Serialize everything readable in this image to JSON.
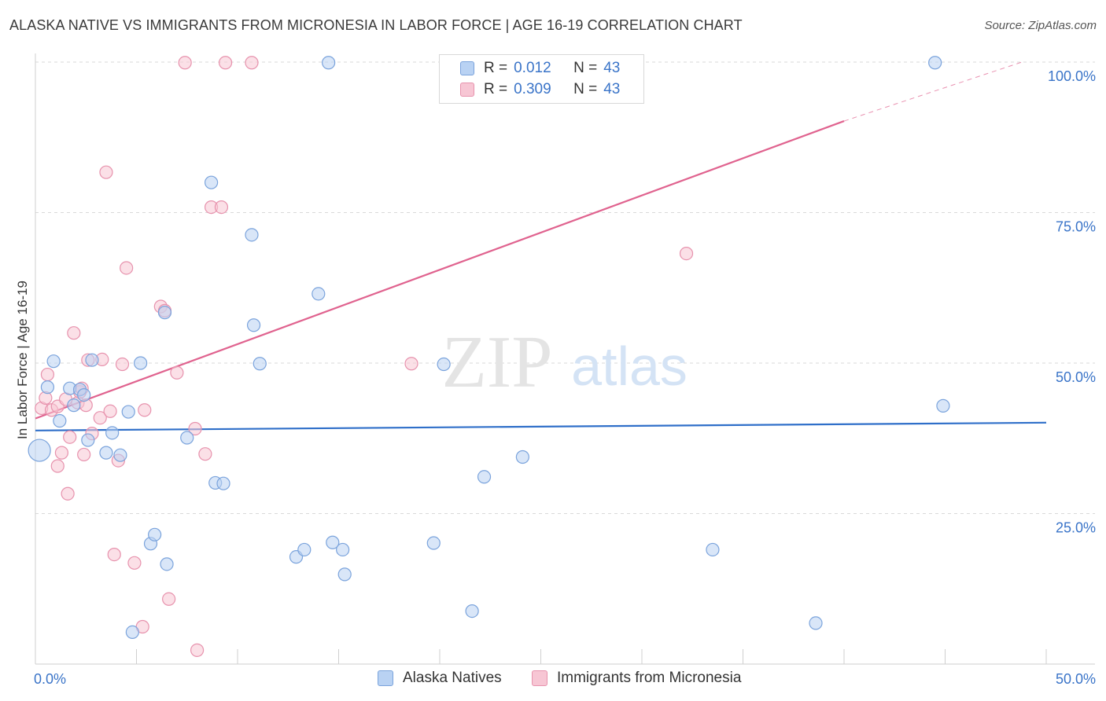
{
  "header": {
    "title": "ALASKA NATIVE VS IMMIGRANTS FROM MICRONESIA IN LABOR FORCE | AGE 16-19 CORRELATION CHART",
    "source": "Source: ZipAtlas.com"
  },
  "watermark": {
    "zip": "ZIP",
    "atlas": "atlas"
  },
  "legend": {
    "rows": [
      {
        "r_label": "R =",
        "r_value": "0.012",
        "n_label": "N =",
        "n_value": "43"
      },
      {
        "r_label": "R =",
        "r_value": "0.309",
        "n_label": "N =",
        "n_value": "43"
      }
    ]
  },
  "colors": {
    "blue_fill": "#b9d2f3",
    "blue_stroke": "#7aa3dc",
    "blue_line": "#2f6fc9",
    "pink_fill": "#f7c6d4",
    "pink_stroke": "#e792ad",
    "pink_line": "#e0638f",
    "grid": "#d9d9d9",
    "axis_label": "#3a74c8"
  },
  "chart_data": {
    "type": "scatter",
    "title": "ALASKA NATIVE VS IMMIGRANTS FROM MICRONESIA IN LABOR FORCE | AGE 16-19 CORRELATION CHART",
    "xlabel": "",
    "ylabel": "In Labor Force | Age 16-19",
    "xlim": [
      0,
      50
    ],
    "ylim": [
      0,
      100
    ],
    "x_ticks": [
      "0.0%",
      "50.0%"
    ],
    "y_ticks": [
      "25.0%",
      "50.0%",
      "75.0%",
      "100.0%"
    ],
    "legend_position": "bottom-center",
    "series": [
      {
        "name": "Alaska Natives",
        "r": 0.012,
        "n": 43,
        "trend": {
          "x": [
            0,
            50
          ],
          "y": [
            38.8,
            40.1
          ]
        },
        "points": [
          [
            0.2,
            35.5
          ],
          [
            0.6,
            46
          ],
          [
            0.9,
            50.3
          ],
          [
            1.2,
            40.4
          ],
          [
            1.7,
            45.8
          ],
          [
            1.9,
            43
          ],
          [
            2.2,
            45.6
          ],
          [
            2.4,
            44.7
          ],
          [
            2.6,
            37.2
          ],
          [
            2.8,
            50.5
          ],
          [
            3.5,
            35.1
          ],
          [
            3.8,
            38.4
          ],
          [
            4.2,
            34.7
          ],
          [
            4.6,
            41.9
          ],
          [
            5.2,
            50
          ],
          [
            4.8,
            5.3
          ],
          [
            5.7,
            20
          ],
          [
            5.9,
            21.5
          ],
          [
            6.4,
            58.4
          ],
          [
            6.5,
            16.6
          ],
          [
            7.5,
            37.6
          ],
          [
            8.7,
            80
          ],
          [
            8.9,
            30.1
          ],
          [
            9.3,
            30
          ],
          [
            10.7,
            71.3
          ],
          [
            10.8,
            56.3
          ],
          [
            11.1,
            49.9
          ],
          [
            12.9,
            17.8
          ],
          [
            13.3,
            19
          ],
          [
            14,
            61.5
          ],
          [
            14.7,
            20.2
          ],
          [
            14.5,
            99.9
          ],
          [
            15.2,
            19
          ],
          [
            15.3,
            14.9
          ],
          [
            19.7,
            20.1
          ],
          [
            20.2,
            49.8
          ],
          [
            21.6,
            8.8
          ],
          [
            22.2,
            31.1
          ],
          [
            24.1,
            34.4
          ],
          [
            33.5,
            19
          ],
          [
            38.6,
            6.8
          ],
          [
            44.5,
            99.9
          ],
          [
            44.9,
            42.9
          ]
        ]
      },
      {
        "name": "Immigrants from Micronesia",
        "r": 0.309,
        "n": 43,
        "trend": {
          "x": [
            0,
            40
          ],
          "y": [
            40.8,
            90.2
          ]
        },
        "trend_ext": {
          "x": [
            40,
            48.8
          ],
          "y": [
            90.2,
            100
          ]
        },
        "points": [
          [
            0.3,
            42.5
          ],
          [
            0.5,
            44.2
          ],
          [
            0.6,
            48.1
          ],
          [
            0.8,
            42.2
          ],
          [
            1.1,
            42.8
          ],
          [
            1.1,
            32.9
          ],
          [
            1.3,
            35.1
          ],
          [
            1.5,
            44
          ],
          [
            1.6,
            28.3
          ],
          [
            1.7,
            37.7
          ],
          [
            1.9,
            55
          ],
          [
            2.1,
            43.4
          ],
          [
            2.2,
            45.2
          ],
          [
            2.3,
            45.8
          ],
          [
            2.4,
            34.8
          ],
          [
            2.5,
            43
          ],
          [
            2.6,
            50.5
          ],
          [
            2.8,
            38.3
          ],
          [
            3.2,
            40.9
          ],
          [
            3.3,
            50.6
          ],
          [
            3.5,
            81.7
          ],
          [
            3.7,
            42
          ],
          [
            3.9,
            18.2
          ],
          [
            4.1,
            33.8
          ],
          [
            4.3,
            49.8
          ],
          [
            4.5,
            65.8
          ],
          [
            4.9,
            16.8
          ],
          [
            5.3,
            6.2
          ],
          [
            5.4,
            42.2
          ],
          [
            6.2,
            59.4
          ],
          [
            6.4,
            58.7
          ],
          [
            6.6,
            10.8
          ],
          [
            7,
            48.4
          ],
          [
            7.4,
            99.9
          ],
          [
            7.9,
            39.1
          ],
          [
            8,
            2.3
          ],
          [
            8.4,
            34.9
          ],
          [
            8.7,
            75.9
          ],
          [
            9.2,
            75.9
          ],
          [
            9.4,
            99.9
          ],
          [
            10.7,
            99.9
          ],
          [
            18.6,
            49.9
          ],
          [
            32.2,
            68.2
          ]
        ]
      }
    ]
  },
  "bottom_legend": {
    "items": [
      {
        "label": "Alaska Natives"
      },
      {
        "label": "Immigrants from Micronesia"
      }
    ]
  }
}
